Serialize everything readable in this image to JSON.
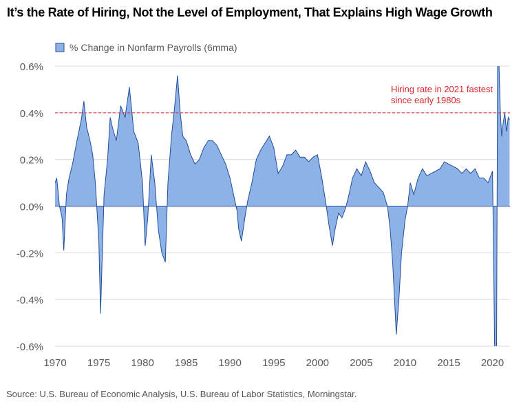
{
  "title": "It’s the Rate of Hiring, Not the Level of Employment, That Explains High Wage Growth",
  "source": "Source: U.S. Bureau of Economic Analysis, U.S. Bureau of Labor Statistics, Morningstar.",
  "colors": {
    "fill": "#8fb2e6",
    "stroke": "#1f4e9c",
    "grid": "#d9d9d9",
    "annotation": "#e0242c",
    "axis_text": "#595959"
  },
  "chart_data": {
    "type": "area",
    "title": "It’s the Rate of Hiring, Not the Level of Employment, That Explains High Wage Growth",
    "xlabel": "",
    "ylabel": "",
    "legend": {
      "label": "% Change in Nonfarm Payrolls (6mma)",
      "placement": "top-left"
    },
    "series": [
      {
        "name": "% Change in Nonfarm Payrolls (6mma)",
        "x": [
          1970.0,
          1970.2,
          1970.5,
          1970.8,
          1971.0,
          1971.3,
          1971.6,
          1972.0,
          1972.5,
          1973.0,
          1973.3,
          1973.6,
          1974.0,
          1974.3,
          1974.6,
          1975.0,
          1975.2,
          1975.6,
          1976.0,
          1976.3,
          1976.6,
          1977.0,
          1977.5,
          1978.0,
          1978.5,
          1979.0,
          1979.5,
          1980.0,
          1980.3,
          1980.6,
          1981.0,
          1981.4,
          1981.8,
          1982.2,
          1982.6,
          1982.9,
          1983.3,
          1983.6,
          1984.0,
          1984.3,
          1984.6,
          1985.0,
          1985.5,
          1986.0,
          1986.5,
          1987.0,
          1987.5,
          1988.0,
          1988.5,
          1989.0,
          1989.5,
          1990.0,
          1990.4,
          1990.8,
          1991.0,
          1991.3,
          1991.7,
          1992.0,
          1992.5,
          1993.0,
          1993.5,
          1994.0,
          1994.5,
          1995.0,
          1995.5,
          1996.0,
          1996.5,
          1997.0,
          1997.5,
          1998.0,
          1998.5,
          1999.0,
          1999.5,
          2000.0,
          2000.5,
          2001.0,
          2001.3,
          2001.7,
          2002.0,
          2002.4,
          2002.8,
          2003.2,
          2003.6,
          2004.0,
          2004.5,
          2005.0,
          2005.5,
          2006.0,
          2006.5,
          2007.0,
          2007.5,
          2008.0,
          2008.3,
          2008.6,
          2009.0,
          2009.3,
          2009.6,
          2010.0,
          2010.3,
          2010.6,
          2011.0,
          2011.5,
          2012.0,
          2012.5,
          2013.0,
          2013.5,
          2014.0,
          2014.5,
          2015.0,
          2015.5,
          2016.0,
          2016.5,
          2017.0,
          2017.5,
          2018.0,
          2018.5,
          2019.0,
          2019.5,
          2020.0,
          2020.15,
          2020.3,
          2020.45,
          2020.6,
          2020.75,
          2020.9,
          2021.05,
          2021.2,
          2021.4,
          2021.6,
          2021.8,
          2021.95
        ],
        "values": [
          0.1,
          0.12,
          0.0,
          -0.05,
          -0.19,
          0.05,
          0.12,
          0.18,
          0.28,
          0.37,
          0.45,
          0.34,
          0.28,
          0.22,
          0.1,
          -0.15,
          -0.46,
          0.05,
          0.2,
          0.38,
          0.33,
          0.28,
          0.43,
          0.38,
          0.51,
          0.32,
          0.27,
          0.1,
          -0.17,
          -0.05,
          0.22,
          0.1,
          -0.1,
          -0.2,
          -0.24,
          0.1,
          0.3,
          0.4,
          0.56,
          0.4,
          0.3,
          0.28,
          0.22,
          0.18,
          0.2,
          0.25,
          0.28,
          0.28,
          0.26,
          0.22,
          0.18,
          0.12,
          0.05,
          -0.02,
          -0.1,
          -0.15,
          -0.05,
          0.02,
          0.1,
          0.2,
          0.24,
          0.27,
          0.3,
          0.25,
          0.14,
          0.17,
          0.22,
          0.22,
          0.24,
          0.21,
          0.21,
          0.19,
          0.21,
          0.22,
          0.12,
          0.0,
          -0.08,
          -0.17,
          -0.1,
          -0.03,
          -0.05,
          -0.01,
          0.05,
          0.12,
          0.16,
          0.13,
          0.19,
          0.15,
          0.1,
          0.08,
          0.06,
          0.0,
          -0.1,
          -0.25,
          -0.55,
          -0.4,
          -0.2,
          -0.06,
          0.0,
          0.1,
          0.05,
          0.12,
          0.16,
          0.13,
          0.14,
          0.15,
          0.16,
          0.19,
          0.18,
          0.17,
          0.16,
          0.14,
          0.16,
          0.14,
          0.16,
          0.12,
          0.12,
          0.1,
          0.15,
          -0.3,
          -0.8,
          -0.8,
          0.8,
          0.6,
          0.4,
          0.3,
          0.35,
          0.4,
          0.32,
          0.38,
          0.37
        ]
      }
    ],
    "ylim": [
      -0.6,
      0.6
    ],
    "xlim": [
      1970,
      2022
    ],
    "y_ticks": [
      -0.6,
      -0.4,
      -0.2,
      0.0,
      0.2,
      0.4,
      0.6
    ],
    "y_tick_labels": [
      "-0.6%",
      "-0.4%",
      "-0.2%",
      "0.0%",
      "0.2%",
      "0.4%",
      "0.6%"
    ],
    "x_ticks": [
      1970,
      1975,
      1980,
      1985,
      1990,
      1995,
      2000,
      2005,
      2010,
      2015,
      2020
    ],
    "x_tick_labels": [
      "1970",
      "1975",
      "1980",
      "1985",
      "1990",
      "1995",
      "2000",
      "2005",
      "2010",
      "2015",
      "2020"
    ],
    "grid": "horizontal",
    "reference_line": {
      "y": 0.4,
      "style": "dashed"
    },
    "annotation": {
      "lines": [
        "Hiring rate in 2021 fastest",
        "since early 1980s"
      ]
    }
  }
}
